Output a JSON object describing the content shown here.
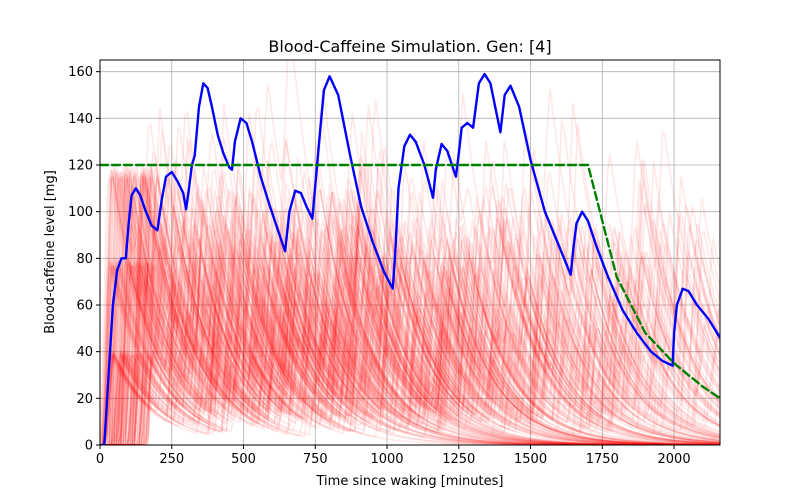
{
  "chart_data": {
    "type": "line",
    "title": "Blood-Caffeine Simulation. Gen: [4]",
    "xlabel": "Time since waking [minutes]",
    "ylabel": "Blood-caffeine level [mg]",
    "xlim": [
      0,
      2160
    ],
    "ylim": [
      0,
      165
    ],
    "xticks": [
      0,
      250,
      500,
      750,
      1000,
      1250,
      1500,
      1750,
      2000
    ],
    "yticks": [
      0,
      20,
      40,
      60,
      80,
      100,
      120,
      140,
      160
    ],
    "grid": true,
    "colors": {
      "best": "#0000ff",
      "target": "#008000",
      "population": "#ff0000"
    },
    "series": [
      {
        "role": "best",
        "x": [
          0,
          15,
          30,
          45,
          60,
          75,
          90,
          100,
          110,
          125,
          140,
          160,
          180,
          200,
          215,
          230,
          250,
          270,
          290,
          300,
          310,
          320,
          330,
          345,
          360,
          375,
          390,
          410,
          430,
          450,
          460,
          470,
          490,
          510,
          530,
          560,
          590,
          620,
          645,
          660,
          680,
          700,
          720,
          740,
          760,
          780,
          800,
          830,
          870,
          910,
          950,
          990,
          1020,
          1030,
          1040,
          1060,
          1080,
          1100,
          1130,
          1160,
          1170,
          1190,
          1210,
          1240,
          1250,
          1260,
          1280,
          1300,
          1320,
          1340,
          1360,
          1380,
          1395,
          1410,
          1430,
          1460,
          1500,
          1550,
          1600,
          1640,
          1650,
          1660,
          1680,
          1700,
          1730,
          1770,
          1820,
          1870,
          1920,
          1960,
          1995,
          2000,
          2010,
          2030,
          2050,
          2080,
          2120,
          2160
        ],
        "y": [
          0,
          0,
          30,
          60,
          75,
          80,
          80,
          95,
          107,
          110,
          107,
          100,
          94,
          92,
          105,
          115,
          117,
          113,
          108,
          101,
          110,
          120,
          124,
          145,
          155,
          153,
          145,
          133,
          125,
          119,
          118,
          130,
          140,
          138,
          130,
          115,
          103,
          92,
          83,
          100,
          109,
          108,
          102,
          97,
          125,
          152,
          158,
          150,
          125,
          102,
          87,
          74,
          67,
          85,
          110,
          128,
          133,
          130,
          120,
          106,
          118,
          129,
          126,
          115,
          125,
          136,
          138,
          136,
          155,
          159,
          155,
          143,
          134,
          150,
          154,
          145,
          122,
          100,
          85,
          73,
          85,
          95,
          100,
          96,
          85,
          72,
          58,
          48,
          40,
          36,
          34,
          48,
          60,
          67,
          66,
          60,
          54,
          46
        ]
      },
      {
        "role": "target",
        "x": [
          0,
          1700,
          1800,
          1900,
          2000,
          2100,
          2160
        ],
        "y": [
          120,
          120,
          72,
          48,
          35,
          25,
          20
        ]
      }
    ]
  }
}
